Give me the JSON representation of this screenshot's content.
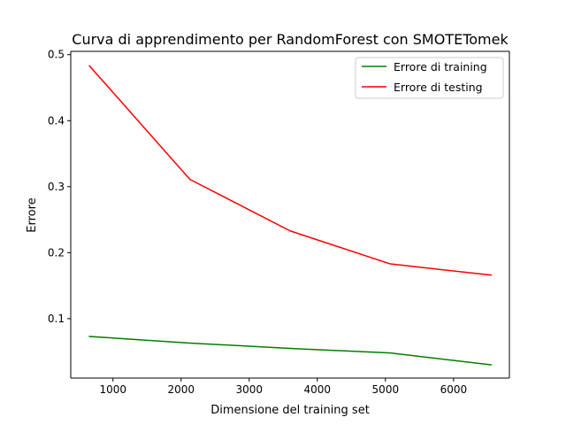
{
  "chart_data": {
    "type": "line",
    "title": "Curva di apprendimento per RandomForest con SMOTETomek",
    "xlabel": "Dimensione del training set",
    "ylabel": "Errore",
    "xlim": [
      380,
      6820
    ],
    "ylim": [
      0.01,
      0.505
    ],
    "xticks": [
      1000,
      2000,
      3000,
      4000,
      5000,
      6000
    ],
    "yticks": [
      0.1,
      0.2,
      0.3,
      0.4,
      0.5
    ],
    "grid": false,
    "legend_position": "top-right",
    "x": [
      655,
      2130,
      3600,
      5070,
      6550
    ],
    "series": [
      {
        "name": "Errore di training",
        "color": "#008000",
        "values": [
          0.073,
          0.063,
          0.055,
          0.048,
          0.03
        ]
      },
      {
        "name": "Errore di testing",
        "color": "#ff0000",
        "values": [
          0.483,
          0.311,
          0.233,
          0.183,
          0.166
        ]
      }
    ]
  }
}
